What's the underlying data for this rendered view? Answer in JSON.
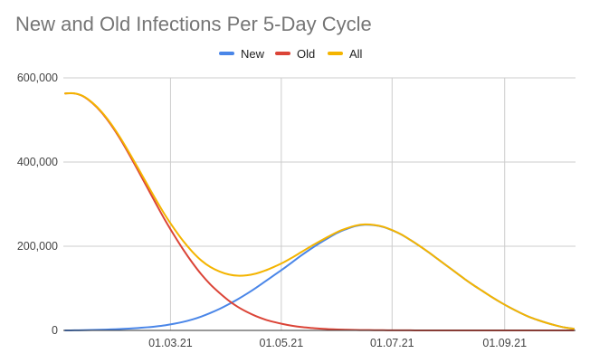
{
  "chart_data": {
    "type": "line",
    "title": "New and Old Infections Per 5-Day Cycle",
    "xlabel": "",
    "ylabel": "",
    "x": [
      "2021-01-02",
      "2021-01-07",
      "2021-01-12",
      "2021-01-17",
      "2021-01-22",
      "2021-01-27",
      "2021-02-01",
      "2021-02-06",
      "2021-02-11",
      "2021-02-16",
      "2021-02-21",
      "2021-02-26",
      "2021-03-03",
      "2021-03-08",
      "2021-03-13",
      "2021-03-18",
      "2021-03-23",
      "2021-03-28",
      "2021-04-02",
      "2021-04-07",
      "2021-04-12",
      "2021-04-17",
      "2021-04-22",
      "2021-04-27",
      "2021-05-02",
      "2021-05-07",
      "2021-05-12",
      "2021-05-17",
      "2021-05-22",
      "2021-05-27",
      "2021-06-01",
      "2021-06-06",
      "2021-06-11",
      "2021-06-16",
      "2021-06-21",
      "2021-06-26",
      "2021-07-01",
      "2021-07-06",
      "2021-07-11",
      "2021-07-16",
      "2021-07-21",
      "2021-07-26",
      "2021-07-31",
      "2021-08-05",
      "2021-08-10",
      "2021-08-15",
      "2021-08-20",
      "2021-08-25",
      "2021-08-30",
      "2021-09-04",
      "2021-09-09",
      "2021-09-14",
      "2021-09-19",
      "2021-09-24",
      "2021-09-29",
      "2021-10-04",
      "2021-10-09"
    ],
    "series": [
      {
        "name": "New",
        "color": "#4a86e8",
        "values": [
          0,
          200,
          500,
          1000,
          1600,
          2300,
          3200,
          4300,
          5700,
          7400,
          9500,
          12200,
          15800,
          20300,
          26000,
          33000,
          41500,
          51000,
          62000,
          74000,
          87000,
          101000,
          116000,
          131000,
          146000,
          162000,
          178000,
          193000,
          207000,
          220000,
          232000,
          241000,
          248000,
          251000,
          250000,
          246000,
          238000,
          228000,
          215000,
          201000,
          186000,
          170000,
          154000,
          138000,
          122000,
          107000,
          93000,
          79000,
          66000,
          54000,
          43000,
          33000,
          25000,
          18000,
          12000,
          7000,
          4000
        ]
      },
      {
        "name": "Old",
        "color": "#db4437",
        "values": [
          563000,
          563000,
          556000,
          540000,
          518000,
          490000,
          457000,
          420000,
          381000,
          341000,
          301000,
          262000,
          226000,
          192000,
          161000,
          133000,
          109000,
          89000,
          71000,
          56000,
          44000,
          34000,
          26000,
          20000,
          15000,
          11000,
          8000,
          6000,
          4200,
          3000,
          2200,
          1600,
          1100,
          800,
          600,
          400,
          300,
          200,
          150,
          100,
          70,
          50,
          40,
          30,
          20,
          10,
          10,
          0,
          0,
          0,
          0,
          0,
          0,
          0,
          0,
          0,
          0
        ]
      },
      {
        "name": "All",
        "color": "#f4b400",
        "values": [
          563000,
          563200,
          556500,
          541000,
          519600,
          492300,
          460200,
          424300,
          386700,
          348400,
          310500,
          274200,
          241800,
          212300,
          187000,
          166000,
          150500,
          140000,
          133000,
          130000,
          131000,
          135000,
          142000,
          151000,
          161000,
          173000,
          186000,
          199000,
          211200,
          223000,
          234200,
          242600,
          249100,
          251800,
          250600,
          246400,
          238300,
          228200,
          215150,
          201100,
          186070,
          170050,
          154040,
          138030,
          122020,
          107010,
          93010,
          79000,
          66000,
          54000,
          43000,
          33000,
          25000,
          18000,
          12000,
          7000,
          4000
        ]
      }
    ],
    "x_ticks": [
      "01.03.21",
      "01.05.21",
      "01.07.21",
      "01.09.21"
    ],
    "y_ticks": [
      "0",
      "200,000",
      "400,000",
      "600,000"
    ],
    "ylim": [
      0,
      600000
    ],
    "xlim": [
      "2021-01-01",
      "2021-10-10"
    ],
    "legend": "top",
    "grid": true
  }
}
